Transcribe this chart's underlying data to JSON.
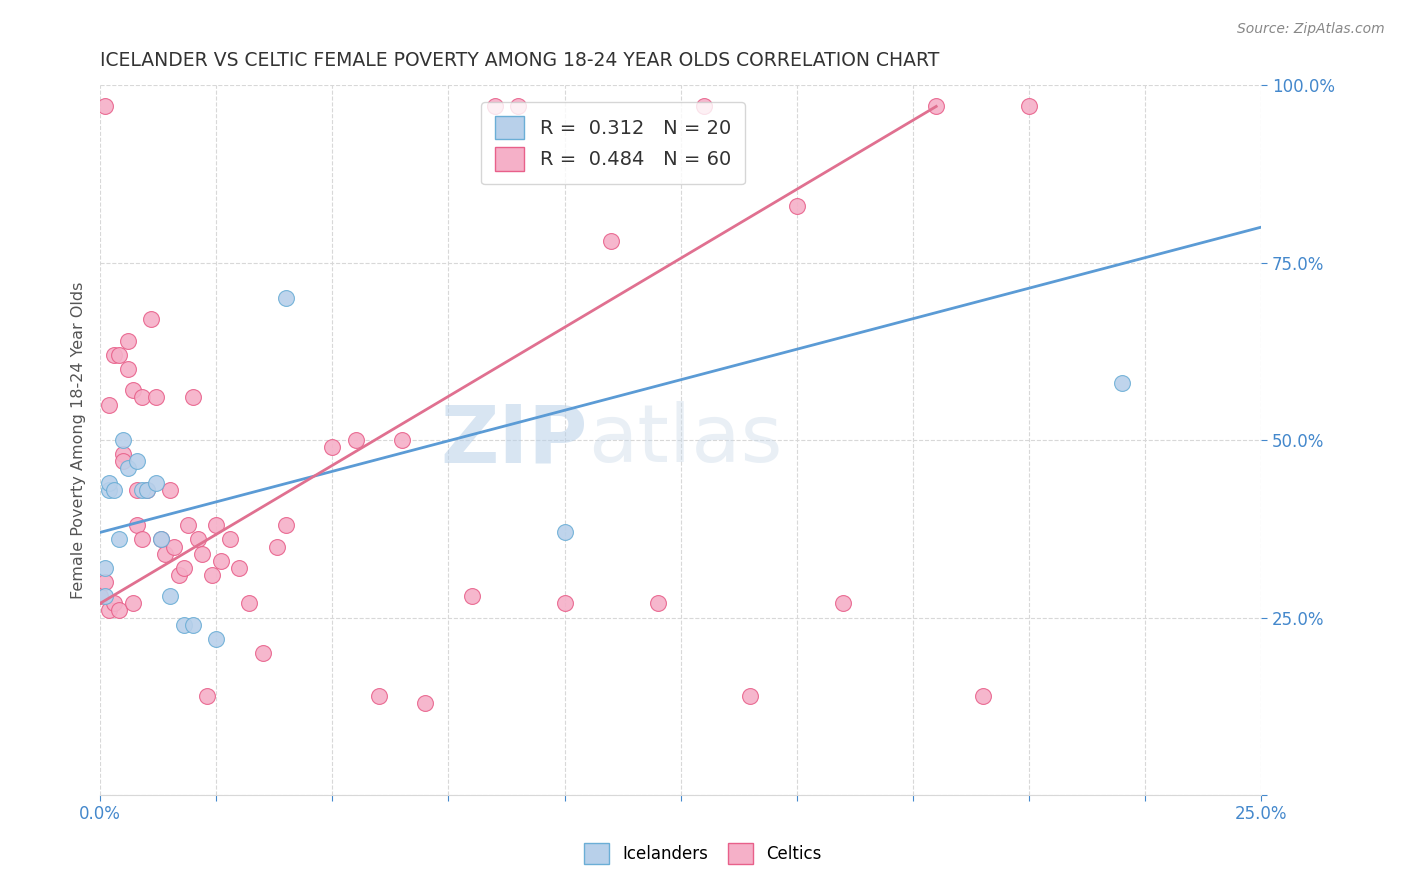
{
  "title": "ICELANDER VS CELTIC FEMALE POVERTY AMONG 18-24 YEAR OLDS CORRELATION CHART",
  "source": "Source: ZipAtlas.com",
  "ylabel_label": "Female Poverty Among 18-24 Year Olds",
  "xlim": [
    0.0,
    0.25
  ],
  "ylim": [
    0.0,
    1.0
  ],
  "xtick_vals": [
    0.0,
    0.025,
    0.05,
    0.075,
    0.1,
    0.125,
    0.15,
    0.175,
    0.2,
    0.225,
    0.25
  ],
  "ytick_vals": [
    0.0,
    0.25,
    0.5,
    0.75,
    1.0
  ],
  "icelander_color": "#b8d0ea",
  "celtic_color": "#f5b0c8",
  "icelander_edge_color": "#6baed6",
  "celtic_edge_color": "#e8608a",
  "icelander_line_color": "#5b9bd5",
  "celtic_line_color": "#e07090",
  "legend_r_icelander": "R =  0.312",
  "legend_n_icelander": "N = 20",
  "legend_r_celtic": "R =  0.484",
  "legend_n_celtic": "N = 60",
  "icelander_scatter_x": [
    0.001,
    0.001,
    0.002,
    0.002,
    0.003,
    0.004,
    0.005,
    0.006,
    0.008,
    0.009,
    0.01,
    0.012,
    0.013,
    0.015,
    0.018,
    0.02,
    0.025,
    0.04,
    0.1,
    0.22
  ],
  "icelander_scatter_y": [
    0.28,
    0.32,
    0.43,
    0.44,
    0.43,
    0.36,
    0.5,
    0.46,
    0.47,
    0.43,
    0.43,
    0.44,
    0.36,
    0.28,
    0.24,
    0.24,
    0.22,
    0.7,
    0.37,
    0.58
  ],
  "celtic_scatter_x": [
    0.0,
    0.001,
    0.001,
    0.002,
    0.002,
    0.003,
    0.003,
    0.004,
    0.004,
    0.005,
    0.005,
    0.006,
    0.006,
    0.007,
    0.007,
    0.008,
    0.008,
    0.009,
    0.009,
    0.01,
    0.011,
    0.012,
    0.013,
    0.014,
    0.015,
    0.016,
    0.017,
    0.018,
    0.019,
    0.02,
    0.021,
    0.022,
    0.023,
    0.024,
    0.025,
    0.026,
    0.028,
    0.03,
    0.032,
    0.035,
    0.038,
    0.04,
    0.05,
    0.055,
    0.06,
    0.065,
    0.07,
    0.08,
    0.085,
    0.09,
    0.1,
    0.11,
    0.12,
    0.13,
    0.14,
    0.15,
    0.16,
    0.18,
    0.19,
    0.2
  ],
  "celtic_scatter_y": [
    0.28,
    0.3,
    0.97,
    0.26,
    0.55,
    0.27,
    0.62,
    0.62,
    0.26,
    0.48,
    0.47,
    0.64,
    0.6,
    0.57,
    0.27,
    0.43,
    0.38,
    0.56,
    0.36,
    0.43,
    0.67,
    0.56,
    0.36,
    0.34,
    0.43,
    0.35,
    0.31,
    0.32,
    0.38,
    0.56,
    0.36,
    0.34,
    0.14,
    0.31,
    0.38,
    0.33,
    0.36,
    0.32,
    0.27,
    0.2,
    0.35,
    0.38,
    0.49,
    0.5,
    0.14,
    0.5,
    0.13,
    0.28,
    0.97,
    0.97,
    0.27,
    0.78,
    0.27,
    0.97,
    0.14,
    0.83,
    0.27,
    0.97,
    0.14,
    0.97
  ],
  "icelander_line_x": [
    0.0,
    0.25
  ],
  "icelander_line_y": [
    0.37,
    0.8
  ],
  "celtic_line_x": [
    0.0,
    0.18
  ],
  "celtic_line_y": [
    0.27,
    0.97
  ],
  "watermark_zip": "ZIP",
  "watermark_atlas": "atlas",
  "marker_size": 130,
  "background_color": "#ffffff",
  "grid_color": "#d8d8d8",
  "axis_tick_color": "#4488cc",
  "ylabel_color": "#555555",
  "title_color": "#333333",
  "source_color": "#888888",
  "title_fontsize": 13.5,
  "ytick_right": true
}
